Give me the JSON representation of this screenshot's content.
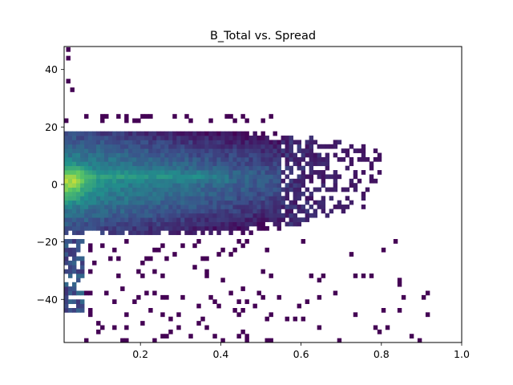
{
  "chart_data": {
    "type": "heatmap",
    "title": "B_Total vs. Spread",
    "xlabel": "",
    "ylabel": "",
    "xlim": [
      0.01,
      1.0
    ],
    "ylim": [
      -55,
      48
    ],
    "x_ticks": [
      0.2,
      0.4,
      0.6,
      0.8,
      1.0
    ],
    "x_tick_labels": [
      "0.2",
      "0.4",
      "0.6",
      "0.8",
      "1.0"
    ],
    "y_ticks": [
      -40,
      -20,
      0,
      20,
      40
    ],
    "y_tick_labels": [
      "−40",
      "−20",
      "0",
      "20",
      "40"
    ],
    "colormap": [
      "#440154",
      "#3b528b",
      "#21918c",
      "#5ec962",
      "#fde725"
    ],
    "grid": false,
    "bin_width_x": 0.01,
    "bin_height_y": 1.5,
    "density_model": {
      "core_x_range": [
        0.01,
        0.62
      ],
      "core_y_range": [
        -18,
        20
      ],
      "peak": [
        0.02,
        0.5
      ],
      "sparse_tail_x_max": 0.94,
      "sparse_tail_y_min": -55,
      "outlier_points": [
        [
          0.02,
          47
        ],
        [
          0.02,
          44
        ],
        [
          0.02,
          36
        ],
        [
          0.03,
          33
        ]
      ]
    }
  }
}
